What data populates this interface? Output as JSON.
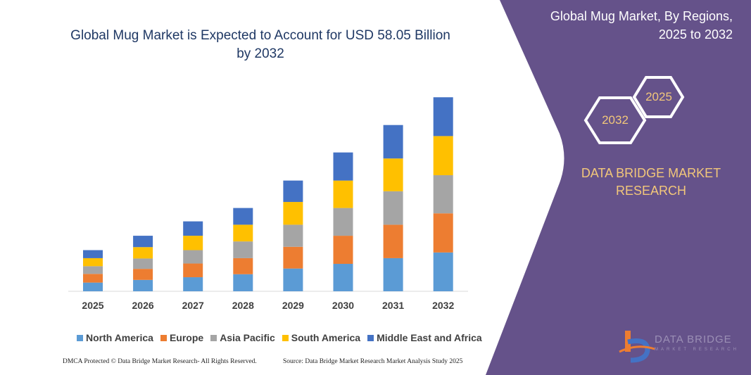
{
  "title": "Global Mug Market is Expected to Account for USD 58.05 Billion by 2032",
  "side_panel": {
    "title_line1": "Global Mug Market, By Regions,",
    "title_line2": "2025 to 2032",
    "hex_2025": "2025",
    "hex_2032": "2032",
    "brand_line1": "DATA BRIDGE MARKET",
    "brand_line2": "RESEARCH",
    "logo_text": "DATA BRIDGE",
    "logo_subtext": "MARKET RESEARCH",
    "panel_color": "#65528a"
  },
  "footer": {
    "left": "DMCA Protected © Data Bridge Market Research- All Rights Reserved.",
    "right": "Source: Data Bridge Market Research Market Analysis Study 2025"
  },
  "chart_data": {
    "type": "bar",
    "stacked": true,
    "title": "Global Mug Market is Expected to Account for USD 58.05 Billion by 2032",
    "xlabel": "",
    "ylabel": "",
    "ylim": [
      0,
      60
    ],
    "grid": false,
    "y_axis_shown": false,
    "legend_placement": "bottom",
    "categories": [
      "2025",
      "2026",
      "2027",
      "2028",
      "2029",
      "2030",
      "2031",
      "2032"
    ],
    "series": [
      {
        "name": "North America",
        "color": "#5b9bd5",
        "values": [
          2.6,
          3.4,
          4.2,
          5.1,
          6.8,
          8.2,
          9.9,
          11.6
        ]
      },
      {
        "name": "Europe",
        "color": "#ed7d31",
        "values": [
          2.6,
          3.3,
          4.1,
          4.8,
          6.5,
          8.4,
          10.0,
          11.7
        ]
      },
      {
        "name": "Asia Pacific",
        "color": "#a5a5a5",
        "values": [
          2.3,
          3.1,
          4.0,
          5.0,
          6.6,
          8.3,
          10.0,
          11.4
        ]
      },
      {
        "name": "South America",
        "color": "#ffc000",
        "values": [
          2.4,
          3.4,
          4.3,
          5.0,
          6.8,
          8.2,
          9.8,
          11.7
        ]
      },
      {
        "name": "Middle East and Africa",
        "color": "#4472c4",
        "values": [
          2.4,
          3.4,
          4.3,
          5.0,
          6.4,
          8.4,
          10.0,
          11.6
        ]
      }
    ]
  }
}
